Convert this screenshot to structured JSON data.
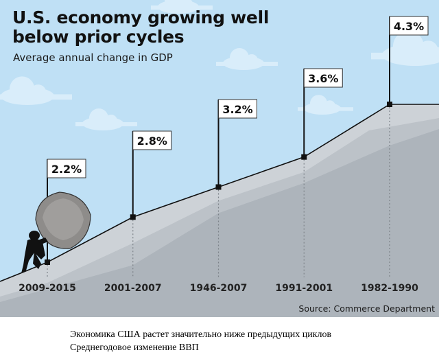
{
  "chart_data": {
    "type": "line",
    "title": "U.S. economy growing well below prior cycles",
    "title_lines": [
      "U.S. economy growing well",
      "below prior cycles"
    ],
    "subtitle": "Average annual change in GDP",
    "xlabel": "",
    "ylabel": "",
    "categories": [
      "2009-2015",
      "2001-2007",
      "1946-2007",
      "1991-2001",
      "1982-1990"
    ],
    "series": [
      {
        "name": "Average annual change in GDP",
        "values": [
          2.2,
          2.8,
          3.2,
          3.6,
          4.3
        ]
      }
    ],
    "data_labels": [
      "2.2%",
      "2.8%",
      "3.2%",
      "3.6%",
      "4.3%"
    ],
    "ylim": [
      1.5,
      4.5
    ],
    "grid": false,
    "legend": "none",
    "source": "Source: Commerce Department",
    "colors": {
      "sky": "#bfe0f5",
      "cloud": "#d9edfa",
      "hill_light": "#cdd2d7",
      "hill_dark": "#adb4bb",
      "line": "#111111",
      "flag_bg": "#ffffff"
    }
  },
  "caption": {
    "line1": "Экономика США растет значительно ниже предыдущих циклов",
    "line2": "Среднегодовое изменение ВВП"
  }
}
